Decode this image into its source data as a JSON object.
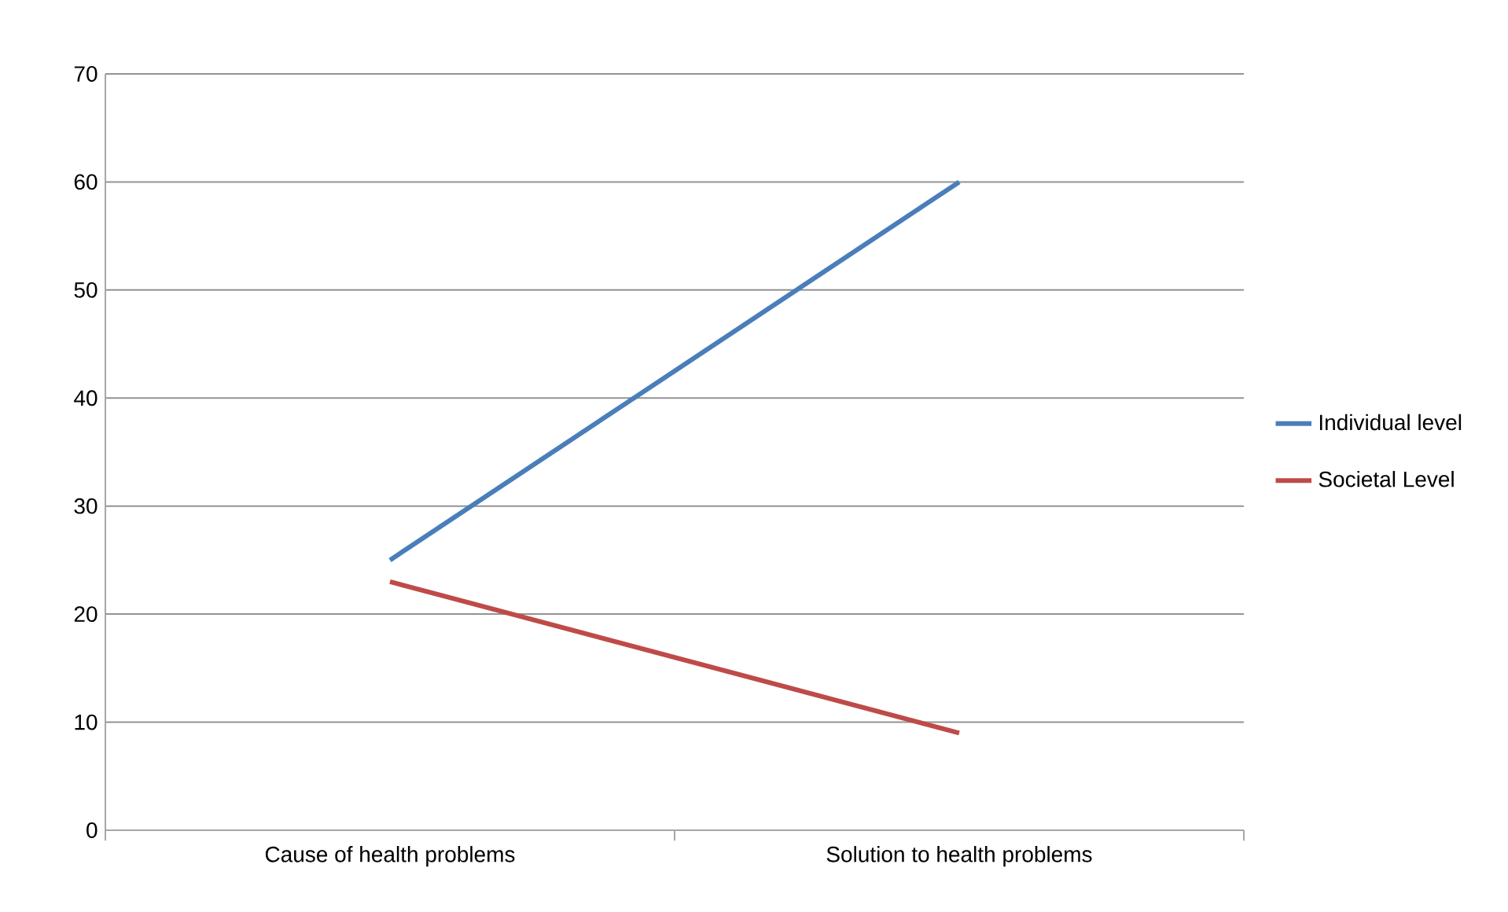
{
  "chart_data": {
    "type": "line",
    "categories": [
      "Cause of health problems",
      "Solution to health problems"
    ],
    "series": [
      {
        "name": "Individual level",
        "color": "#4a7ebb",
        "values": [
          25,
          60
        ]
      },
      {
        "name": "Societal Level",
        "color": "#be4b48",
        "values": [
          23,
          9
        ]
      }
    ],
    "ylim": [
      0,
      70
    ],
    "yticks": [
      0,
      10,
      20,
      30,
      40,
      50,
      60,
      70
    ],
    "grid": "y",
    "legend": "right",
    "marker": "none",
    "line_style": "solid"
  }
}
